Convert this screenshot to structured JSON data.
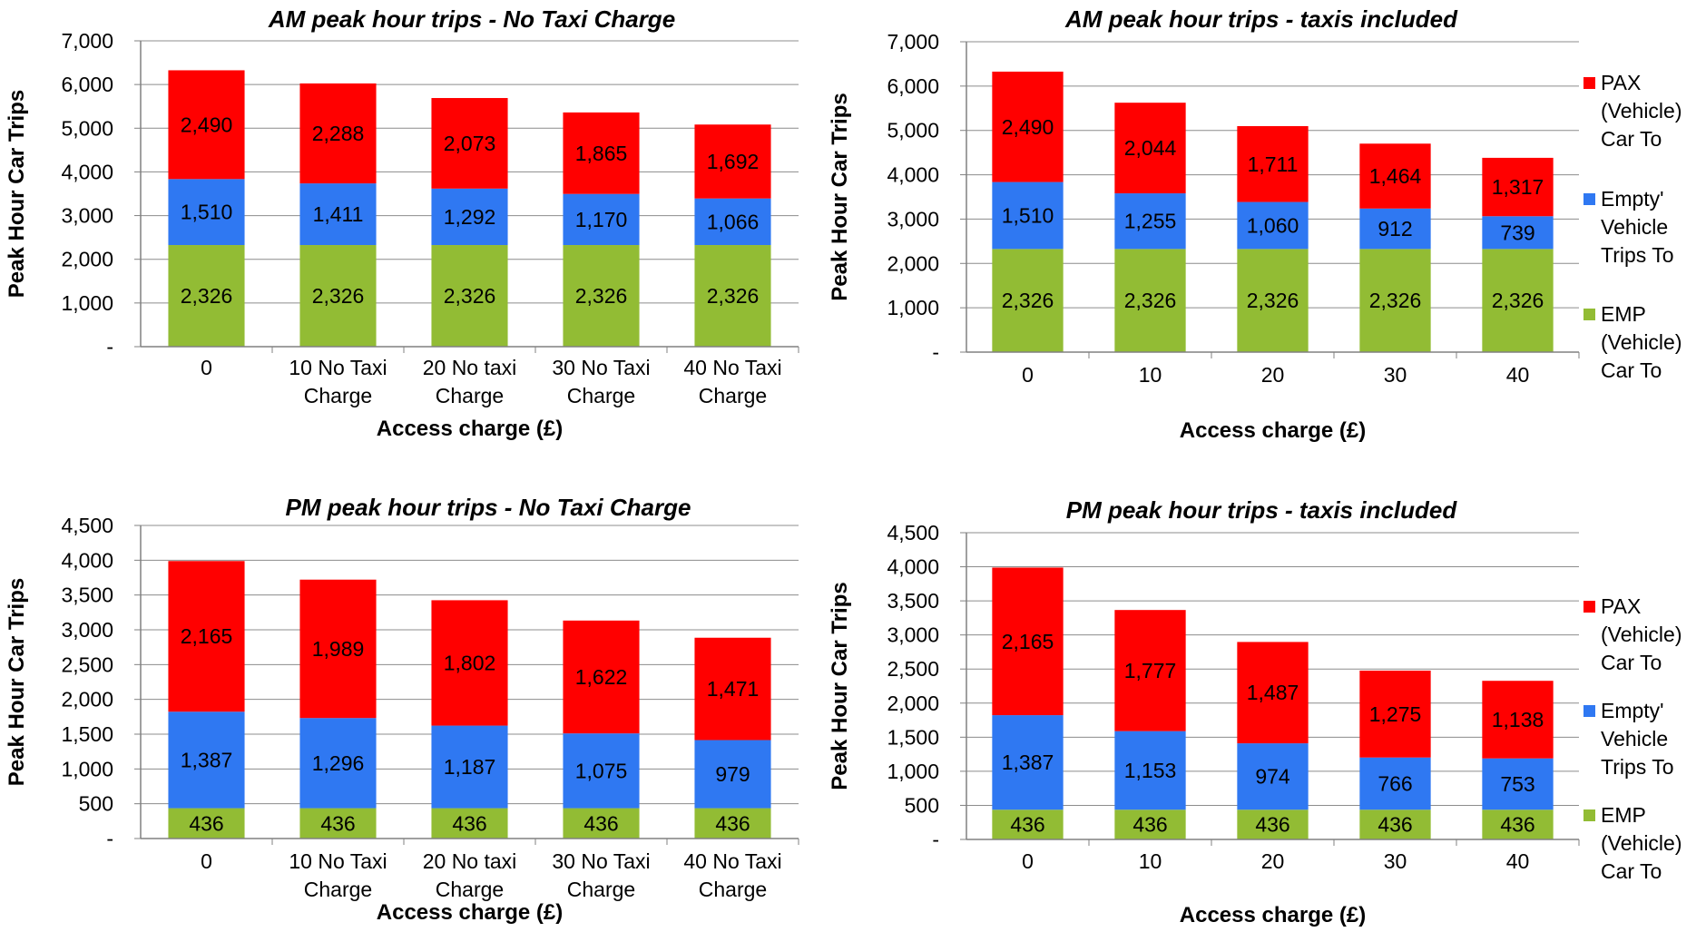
{
  "colors": {
    "emp": "#92BC34",
    "empty": "#2F78F2",
    "pax": "#FF0000",
    "gridline": "#8c8c8c",
    "axis": "#808080",
    "text": "#000000"
  },
  "legend": {
    "items": [
      {
        "key": "pax",
        "label": "PAX (Vehicle) Car To"
      },
      {
        "key": "empty",
        "label": "Empty' Vehicle Trips To"
      },
      {
        "key": "emp",
        "label": "EMP (Vehicle) Car To"
      }
    ]
  },
  "chart_data": [
    {
      "type": "bar",
      "stacked": true,
      "title": "AM peak hour  trips - No Taxi Charge",
      "xlabel": "Access charge (£)",
      "ylabel": "Peak Hour Car Trips",
      "categories": [
        "0",
        "10 No Taxi Charge",
        "20 No taxi Charge",
        "30 No Taxi Charge",
        "40 No Taxi Charge"
      ],
      "series": [
        {
          "name": "EMP (Vehicle) Car To",
          "key": "emp",
          "values": [
            2326,
            2326,
            2326,
            2326,
            2326
          ],
          "labels": [
            "2,326",
            "2,326",
            "2,326",
            "2,326",
            "2,326"
          ]
        },
        {
          "name": "Empty' Vehicle Trips To",
          "key": "empty",
          "values": [
            1510,
            1411,
            1292,
            1170,
            1066
          ],
          "labels": [
            "1,510",
            "1,411",
            "1,292",
            "1,170",
            "1,066"
          ]
        },
        {
          "name": "PAX (Vehicle) Car To",
          "key": "pax",
          "values": [
            2490,
            2288,
            2073,
            1865,
            1692
          ],
          "labels": [
            "2,490",
            "2,288",
            "2,073",
            "1,865",
            "1,692"
          ]
        }
      ],
      "ylim": [
        0,
        7000
      ],
      "yticks": [
        0,
        1000,
        2000,
        3000,
        4000,
        5000,
        6000,
        7000
      ],
      "yticklabels": [
        "-",
        "1,000",
        "2,000",
        "3,000",
        "4,000",
        "5,000",
        "6,000",
        "7,000"
      ],
      "grid": true
    },
    {
      "type": "bar",
      "stacked": true,
      "title": "AM peak hour trips - taxis included",
      "xlabel": "Access charge (£)",
      "ylabel": "Peak Hour Car Trips",
      "categories": [
        "0",
        "10",
        "20",
        "30",
        "40"
      ],
      "series": [
        {
          "name": "EMP (Vehicle) Car To",
          "key": "emp",
          "values": [
            2326,
            2326,
            2326,
            2326,
            2326
          ],
          "labels": [
            "2,326",
            "2,326",
            "2,326",
            "2,326",
            "2,326"
          ]
        },
        {
          "name": "Empty' Vehicle Trips To",
          "key": "empty",
          "values": [
            1510,
            1255,
            1060,
            912,
            739
          ],
          "labels": [
            "1,510",
            "1,255",
            "1,060",
            "912",
            "739"
          ]
        },
        {
          "name": "PAX (Vehicle) Car To",
          "key": "pax",
          "values": [
            2490,
            2044,
            1711,
            1464,
            1317
          ],
          "labels": [
            "2,490",
            "2,044",
            "1,711",
            "1,464",
            "1,317"
          ]
        }
      ],
      "ylim": [
        0,
        7000
      ],
      "yticks": [
        0,
        1000,
        2000,
        3000,
        4000,
        5000,
        6000,
        7000
      ],
      "yticklabels": [
        "-",
        "1,000",
        "2,000",
        "3,000",
        "4,000",
        "5,000",
        "6,000",
        "7,000"
      ],
      "grid": true,
      "legend": "right"
    },
    {
      "type": "bar",
      "stacked": true,
      "title": "PM peak hour trips - No Taxi Charge",
      "xlabel": "Access charge (£)",
      "ylabel": "Peak Hour Car Trips",
      "categories": [
        "0",
        "10 No Taxi Charge",
        "20 No taxi Charge",
        "30 No Taxi Charge",
        "40 No Taxi Charge"
      ],
      "series": [
        {
          "name": "EMP (Vehicle) Car To",
          "key": "emp",
          "values": [
            436,
            436,
            436,
            436,
            436
          ],
          "labels": [
            "436",
            "436",
            "436",
            "436",
            "436"
          ]
        },
        {
          "name": "Empty' Vehicle Trips To",
          "key": "empty",
          "values": [
            1387,
            1296,
            1187,
            1075,
            979
          ],
          "labels": [
            "1,387",
            "1,296",
            "1,187",
            "1,075",
            "979"
          ]
        },
        {
          "name": "PAX (Vehicle) Car To",
          "key": "pax",
          "values": [
            2165,
            1989,
            1802,
            1622,
            1471
          ],
          "labels": [
            "2,165",
            "1,989",
            "1,802",
            "1,622",
            "1,471"
          ]
        }
      ],
      "ylim": [
        0,
        4500
      ],
      "yticks": [
        0,
        500,
        1000,
        1500,
        2000,
        2500,
        3000,
        3500,
        4000,
        4500
      ],
      "yticklabels": [
        "-",
        "500",
        "1,000",
        "1,500",
        "2,000",
        "2,500",
        "3,000",
        "3,500",
        "4,000",
        "4,500"
      ],
      "grid": true
    },
    {
      "type": "bar",
      "stacked": true,
      "title": "PM peak hour trips - taxis included",
      "xlabel": "Access charge (£)",
      "ylabel": "Peak Hour Car Trips",
      "categories": [
        "0",
        "10",
        "20",
        "30",
        "40"
      ],
      "series": [
        {
          "name": "EMP (Vehicle) Car To",
          "key": "emp",
          "values": [
            436,
            436,
            436,
            436,
            436
          ],
          "labels": [
            "436",
            "436",
            "436",
            "436",
            "436"
          ]
        },
        {
          "name": "Empty' Vehicle Trips To",
          "key": "empty",
          "values": [
            1387,
            1153,
            974,
            766,
            753
          ],
          "labels": [
            "1,387",
            "1,153",
            "974",
            "766",
            "753"
          ]
        },
        {
          "name": "PAX (Vehicle) Car To",
          "key": "pax",
          "values": [
            2165,
            1777,
            1487,
            1275,
            1138
          ],
          "labels": [
            "2,165",
            "1,777",
            "1,487",
            "1,275",
            "1,138"
          ]
        }
      ],
      "ylim": [
        0,
        4500
      ],
      "yticks": [
        0,
        500,
        1000,
        1500,
        2000,
        2500,
        3000,
        3500,
        4000,
        4500
      ],
      "yticklabels": [
        "-",
        "500",
        "1,000",
        "1,500",
        "2,000",
        "2,500",
        "3,000",
        "3,500",
        "4,000",
        "4,500"
      ],
      "grid": true,
      "legend": "right"
    }
  ]
}
